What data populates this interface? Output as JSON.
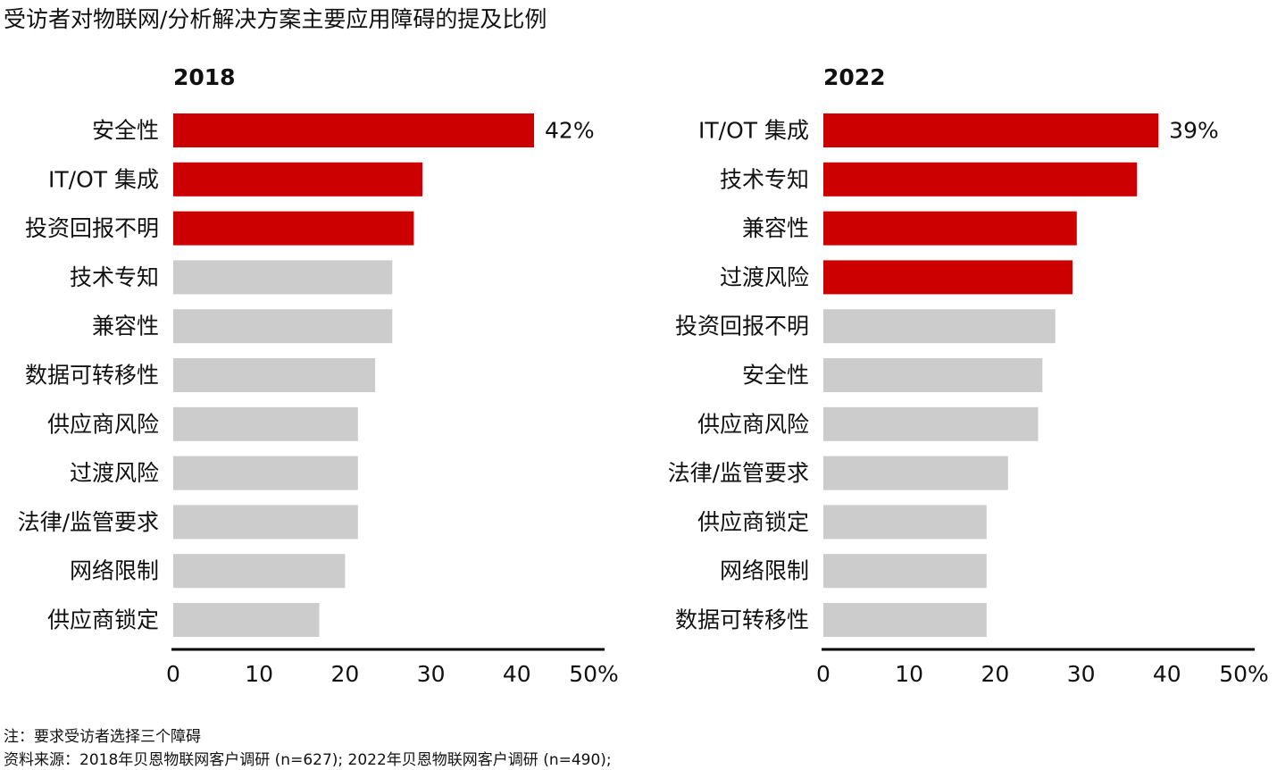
{
  "title": "受访者对物联网/分析解决方案主要应用障碍的提及比例",
  "colors": {
    "highlight": "#cc0000",
    "base": "#cccccc",
    "axis": "#000000"
  },
  "x_tick_labels": [
    "0",
    "10",
    "20",
    "30",
    "40",
    "50%"
  ],
  "chart_data": [
    {
      "type": "bar",
      "orientation": "horizontal",
      "title": "2018",
      "categories": [
        "安全性",
        "IT/OT 集成",
        "投资回报不明",
        "技术专知",
        "兼容性",
        "数据可转移性",
        "供应商风险",
        "过渡风险",
        "法律/监管要求",
        "网络限制",
        "供应商锁定"
      ],
      "values": [
        42,
        29,
        28,
        25.5,
        25.5,
        23.5,
        21.5,
        21.5,
        21.5,
        20,
        17
      ],
      "highlighted": [
        true,
        true,
        true,
        false,
        false,
        false,
        false,
        false,
        false,
        false,
        false
      ],
      "data_labels": [
        "42%",
        "",
        "",
        "",
        "",
        "",
        "",
        "",
        "",
        "",
        ""
      ],
      "xlim": [
        0,
        50
      ],
      "xticks": [
        0,
        10,
        20,
        30,
        40,
        50
      ]
    },
    {
      "type": "bar",
      "orientation": "horizontal",
      "title": "2022",
      "categories": [
        "IT/OT 集成",
        "技术专知",
        "兼容性",
        "过渡风险",
        "投资回报不明",
        "安全性",
        "供应商风险",
        "法律/监管要求",
        "供应商锁定",
        "网络限制",
        "数据可转移性"
      ],
      "values": [
        39,
        36.5,
        29.5,
        29,
        27,
        25.5,
        25,
        21.5,
        19,
        19,
        19
      ],
      "highlighted": [
        true,
        true,
        true,
        true,
        false,
        false,
        false,
        false,
        false,
        false,
        false
      ],
      "data_labels": [
        "39%",
        "",
        "",
        "",
        "",
        "",
        "",
        "",
        "",
        "",
        ""
      ],
      "xlim": [
        0,
        50
      ],
      "xticks": [
        0,
        10,
        20,
        30,
        40,
        50
      ]
    }
  ],
  "notes": {
    "note": "注：要求受访者选择三个障碍",
    "source": "资料来源：2018年贝恩物联网客户调研 (n=627); 2022年贝恩物联网客户调研 (n=490);"
  }
}
